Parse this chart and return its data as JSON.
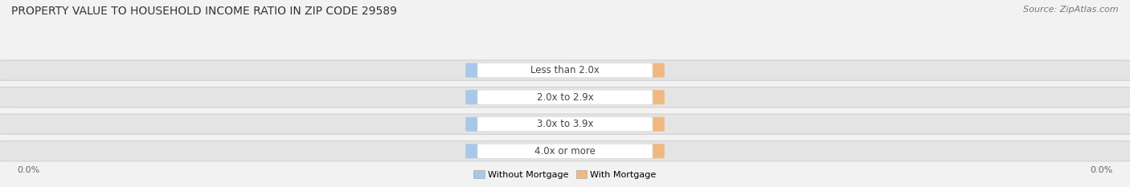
{
  "title": "PROPERTY VALUE TO HOUSEHOLD INCOME RATIO IN ZIP CODE 29589",
  "source": "Source: ZipAtlas.com",
  "categories": [
    "Less than 2.0x",
    "2.0x to 2.9x",
    "3.0x to 3.9x",
    "4.0x or more"
  ],
  "without_mortgage": [
    0.0,
    0.0,
    0.0,
    0.0
  ],
  "with_mortgage": [
    0.0,
    0.0,
    0.0,
    0.0
  ],
  "bar_color_without": "#a8c8e8",
  "bar_color_with": "#f0b880",
  "background_color": "#f2f2f2",
  "row_bg_color": "#e4e4e4",
  "row_bg_edge": "#d0d0d0",
  "label_color": "#444444",
  "value_color": "#ffffff",
  "axis_tick_color": "#666666",
  "title_color": "#333333",
  "source_color": "#777777",
  "title_fontsize": 10,
  "source_fontsize": 8,
  "label_fontsize": 8.5,
  "value_fontsize": 7.5,
  "legend_fontsize": 8,
  "tick_fontsize": 8,
  "xlim_left": "0.0%",
  "xlim_right": "0.0%"
}
